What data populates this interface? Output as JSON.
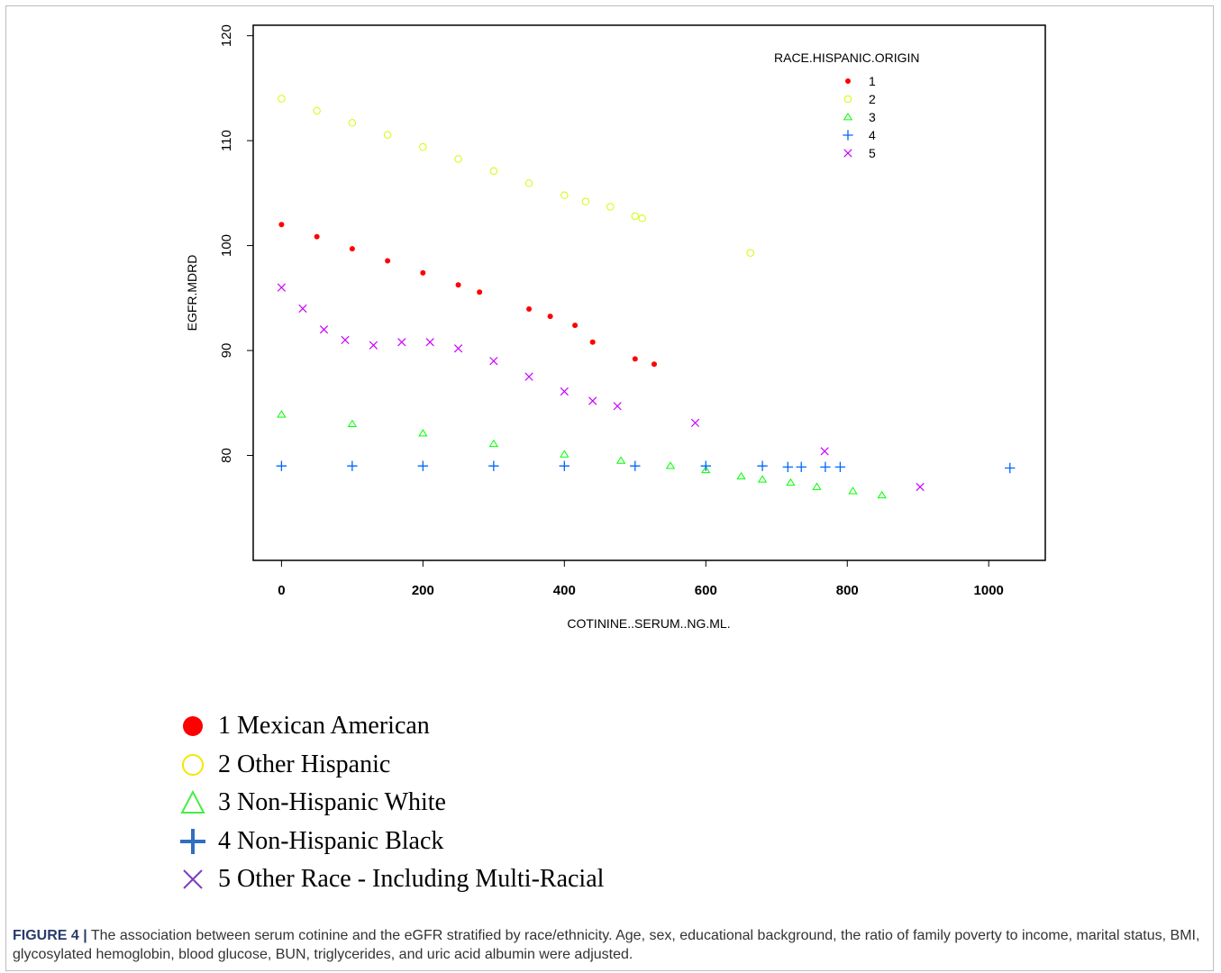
{
  "chart_data": {
    "type": "scatter",
    "title": "",
    "xlabel": "COTININE..SERUM..NG.ML.",
    "ylabel": "EGFR.MDRD",
    "xlim": [
      -40,
      1080
    ],
    "ylim": [
      70,
      121
    ],
    "x_ticks": [
      0,
      200,
      400,
      600,
      800,
      1000
    ],
    "y_ticks": [
      80,
      90,
      100,
      110,
      120
    ],
    "grid": false,
    "legend_title": "RACE.HISPANIC.ORIGIN",
    "legend_position": "top-right",
    "series": [
      {
        "name": "1",
        "color": "#ff0000",
        "marker": "dot",
        "points": [
          [
            0,
            102
          ],
          [
            50,
            100.85
          ],
          [
            100,
            99.7
          ],
          [
            150,
            98.55
          ],
          [
            200,
            97.4
          ],
          [
            250,
            96.25
          ],
          [
            280,
            95.56
          ],
          [
            350,
            93.95
          ],
          [
            380,
            93.26
          ],
          [
            415,
            92.4
          ],
          [
            440,
            90.8
          ],
          [
            500,
            89.2
          ],
          [
            527,
            88.7
          ]
        ]
      },
      {
        "name": "2",
        "color": "#ccff00",
        "marker": "circle",
        "points": [
          [
            0,
            114
          ],
          [
            50,
            112.85
          ],
          [
            100,
            111.7
          ],
          [
            150,
            110.55
          ],
          [
            200,
            109.4
          ],
          [
            250,
            108.25
          ],
          [
            300,
            107.1
          ],
          [
            350,
            105.95
          ],
          [
            400,
            104.8
          ],
          [
            430,
            104.2
          ],
          [
            465,
            103.7
          ],
          [
            500,
            102.8
          ],
          [
            510,
            102.6
          ],
          [
            663,
            99.3
          ]
        ]
      },
      {
        "name": "3",
        "color": "#00ff00",
        "marker": "triangle",
        "points": [
          [
            0,
            83.9
          ],
          [
            100,
            83
          ],
          [
            200,
            82.1
          ],
          [
            300,
            81.1
          ],
          [
            400,
            80.1
          ],
          [
            480,
            79.5
          ],
          [
            550,
            79
          ],
          [
            600,
            78.6
          ],
          [
            650,
            78
          ],
          [
            680,
            77.7
          ],
          [
            720,
            77.4
          ],
          [
            757,
            77
          ],
          [
            808,
            76.6
          ],
          [
            849,
            76.2
          ]
        ]
      },
      {
        "name": "4",
        "color": "#0066ff",
        "marker": "plus",
        "points": [
          [
            0,
            79
          ],
          [
            100,
            79
          ],
          [
            200,
            79
          ],
          [
            300,
            79
          ],
          [
            400,
            79
          ],
          [
            500,
            79
          ],
          [
            600,
            79
          ],
          [
            680,
            79
          ],
          [
            716,
            78.9
          ],
          [
            735,
            78.9
          ],
          [
            769,
            78.9
          ],
          [
            790,
            78.9
          ],
          [
            1030,
            78.8
          ]
        ]
      },
      {
        "name": "5",
        "color": "#cc00ff",
        "marker": "x",
        "points": [
          [
            0,
            96
          ],
          [
            30,
            94
          ],
          [
            60,
            92
          ],
          [
            90,
            91
          ],
          [
            130,
            90.5
          ],
          [
            170,
            90.8
          ],
          [
            210,
            90.8
          ],
          [
            250,
            90.2
          ],
          [
            300,
            89
          ],
          [
            350,
            87.5
          ],
          [
            400,
            86.1
          ],
          [
            440,
            85.2
          ],
          [
            475,
            84.7
          ],
          [
            585,
            83.1
          ],
          [
            768,
            80.4
          ],
          [
            903,
            77
          ]
        ]
      }
    ]
  },
  "key": [
    {
      "label": "1 Mexican American",
      "marker": "filled-circle",
      "color": "#ff0000"
    },
    {
      "label": "2 Other Hispanic",
      "marker": "open-circle",
      "color": "#f4e600"
    },
    {
      "label": "3 Non-Hispanic White",
      "marker": "open-triangle",
      "color": "#44ee44"
    },
    {
      "label": "4 Non-Hispanic Black",
      "marker": "plus",
      "color": "#2f6fbf"
    },
    {
      "label": "5 Other Race - Including Multi-Racial",
      "marker": "x",
      "color": "#7b3fbf"
    }
  ],
  "caption": {
    "label": "FIGURE 4 |",
    "text": "The association between serum cotinine and the eGFR stratified by race/ethnicity. Age, sex, educational background, the ratio of family poverty to income, marital status, BMI, glycosylated hemoglobin, blood glucose, BUN, triglycerides, and uric acid albumin were adjusted."
  }
}
